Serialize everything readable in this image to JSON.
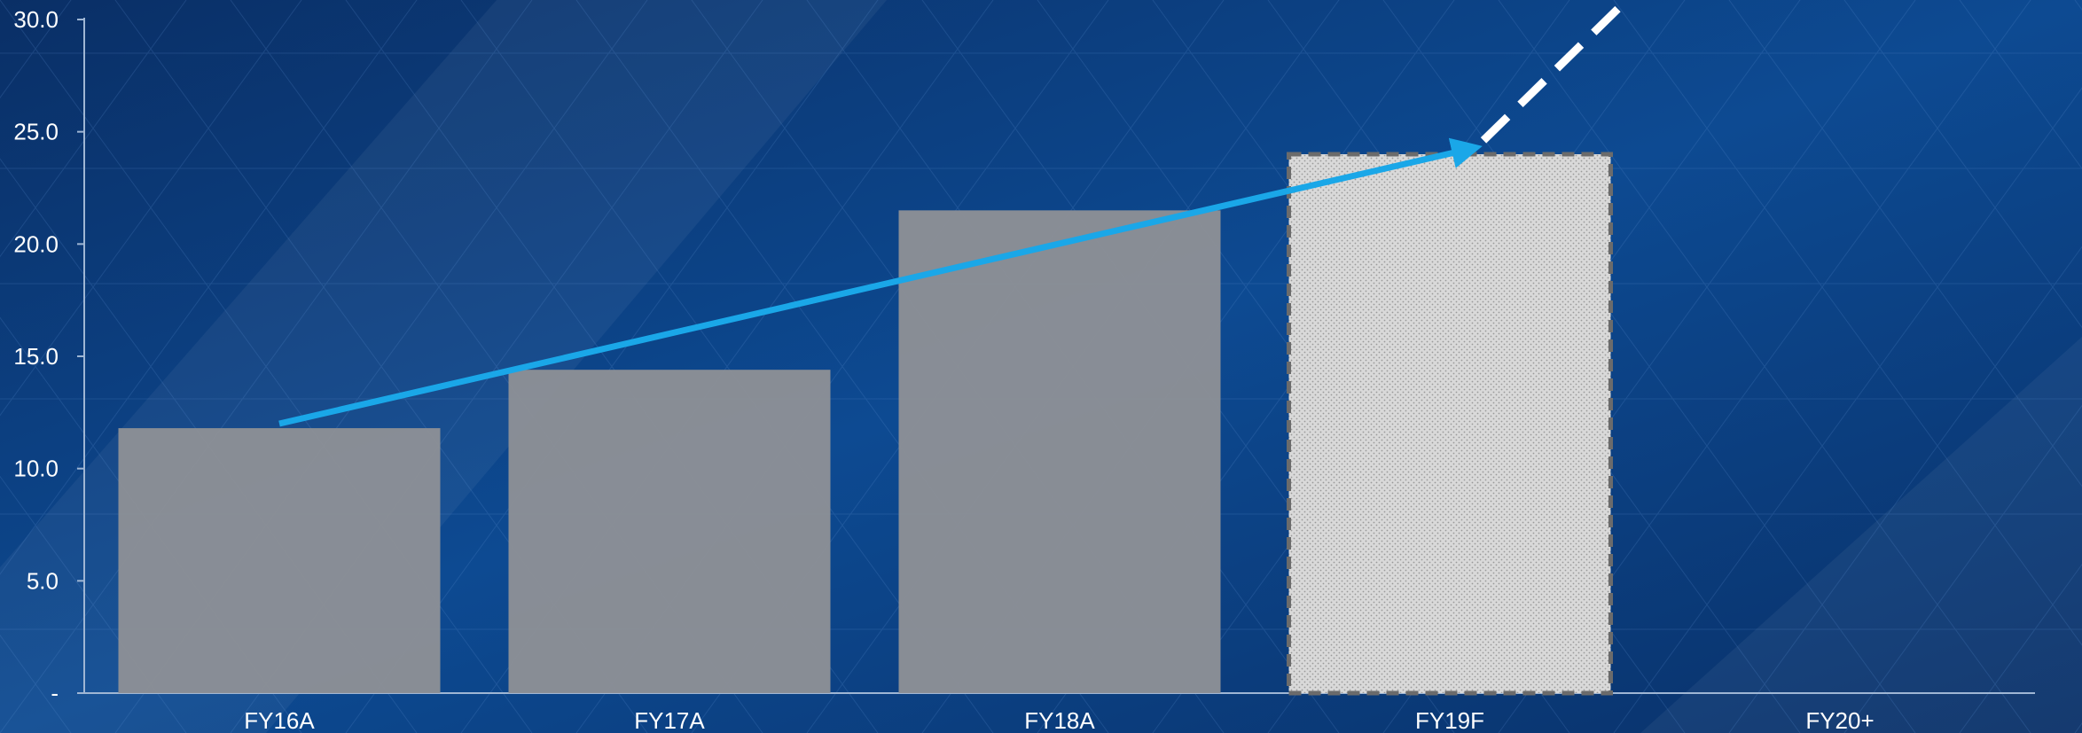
{
  "chart_data": {
    "type": "bar",
    "title": "",
    "xlabel": "",
    "ylabel": "",
    "categories": [
      "FY16A",
      "FY17A",
      "FY18A",
      "FY19F",
      "FY20+"
    ],
    "values": [
      11.8,
      14.4,
      21.5,
      24.0,
      null
    ],
    "ylim": [
      0,
      30
    ],
    "yticks": [
      0,
      5,
      10,
      15,
      20,
      25,
      30
    ],
    "ytick_labels": [
      "-",
      "5.0",
      "10.0",
      "15.0",
      "20.0",
      "25.0",
      "30.0"
    ],
    "forecast_category": "FY19F",
    "trend_arrow": {
      "from_category": "FY16A",
      "from_value": 12.0,
      "to_category": "FY19F",
      "to_value": 24.3
    },
    "trend_extension": "dashed line rising from FY19F above the plot",
    "grid": false,
    "legend": "none",
    "colors": {
      "bar": "#8c9096",
      "forecast_bar": "#d3d3d3",
      "forecast_border": "#6b6b6b",
      "arrow": "#1aa7e8",
      "extension": "#ffffff",
      "axis": "#9fb6d4",
      "text": "#ffffff",
      "background": "#0b3a78"
    }
  }
}
